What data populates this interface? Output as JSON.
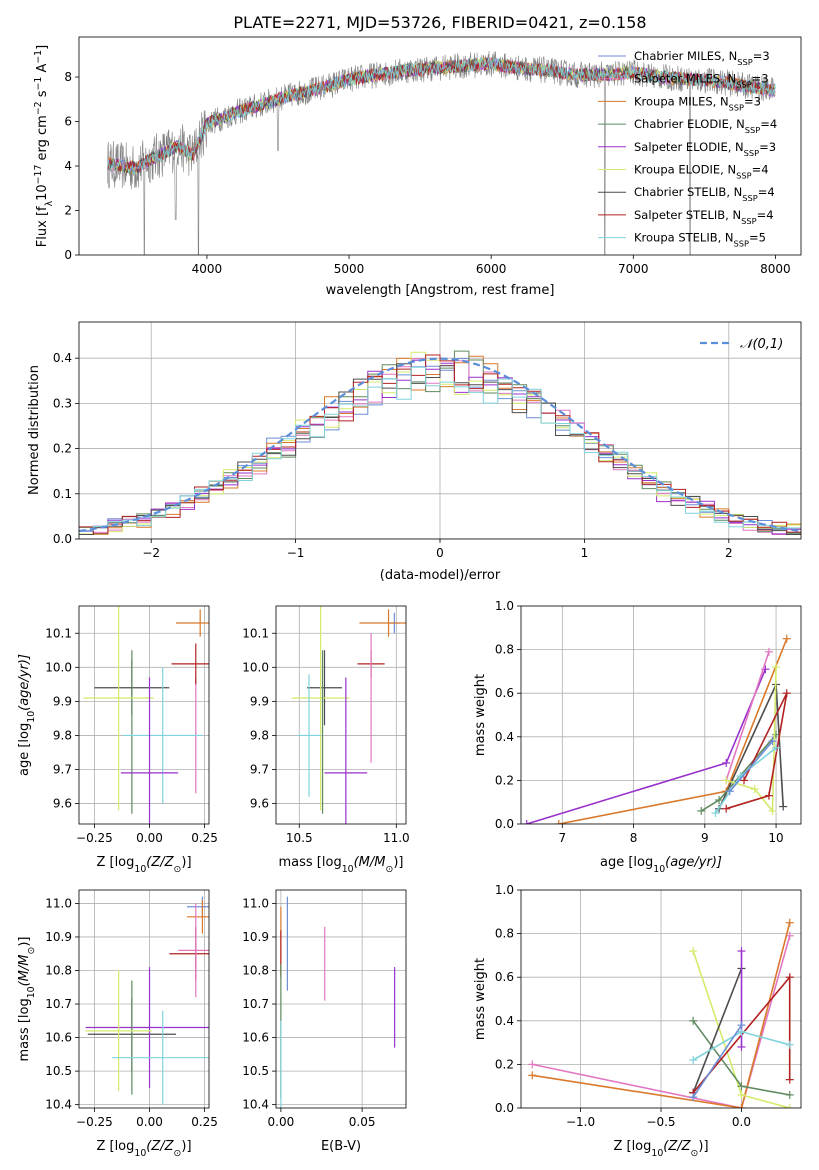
{
  "figure_title": "PLATE=2271, MJD=53726, FIBERID=0421, z=0.158",
  "colors": {
    "Chabrier MILES": "#6b8ed6",
    "Salpeter MILES": "#e377c2",
    "Kroupa MILES": "#d9792b",
    "Chabrier ELODIE": "#5f8a5f",
    "Salpeter ELODIE": "#9932cc",
    "Kroupa ELODIE": "#d4ea6b",
    "Chabrier STELIB": "#4d4d4d",
    "Salpeter STELIB": "#b22222",
    "Kroupa STELIB": "#7fd3dc",
    "gaussian": "#5b8fd9"
  },
  "chart_data": [
    {
      "id": "spectrum",
      "type": "line",
      "title": "PLATE=2271, MJD=53726, FIBERID=0421, z=0.158",
      "xlabel": "wavelength [Angstrom, rest frame]",
      "ylabel_main": "Flux [f",
      "ylabel_sub": "λ",
      "ylabel_rest": "10",
      "ylabel_sup1": "−17",
      "ylabel_rest2": " erg cm",
      "ylabel_sup2": "−2",
      "ylabel_rest3": " s",
      "ylabel_sup3": "−1",
      "ylabel_rest4": " A",
      "ylabel_sup4": "−1",
      "ylabel_end": "]",
      "xlim": [
        3100,
        8180
      ],
      "ylim": [
        0,
        9.8
      ],
      "xticks": [
        4000,
        5000,
        6000,
        7000,
        8000
      ],
      "yticks": [
        0,
        2,
        4,
        6,
        8
      ],
      "grid": false,
      "legend_position": "right",
      "legend": [
        {
          "label": "Chabrier MILES, N",
          "sub": "SSP",
          "val": "=3"
        },
        {
          "label": "Salpeter MILES, N",
          "sub": "SSP",
          "val": "=3"
        },
        {
          "label": "Kroupa MILES, N",
          "sub": "SSP",
          "val": "=3"
        },
        {
          "label": "Chabrier ELODIE, N",
          "sub": "SSP",
          "val": "=4"
        },
        {
          "label": "Salpeter ELODIE, N",
          "sub": "SSP",
          "val": "=3"
        },
        {
          "label": "Kroupa ELODIE, N",
          "sub": "SSP",
          "val": "=4"
        },
        {
          "label": "Chabrier STELIB, N",
          "sub": "SSP",
          "val": "=4"
        },
        {
          "label": "Salpeter STELIB, N",
          "sub": "SSP",
          "val": "=4"
        },
        {
          "label": "Kroupa STELIB, N",
          "sub": "SSP",
          "val": "=5"
        }
      ],
      "model_keys": [
        "Chabrier MILES",
        "Salpeter MILES",
        "Kroupa MILES",
        "Chabrier ELODIE",
        "Salpeter ELODIE",
        "Kroupa ELODIE",
        "Chabrier STELIB",
        "Salpeter STELIB",
        "Kroupa STELIB"
      ],
      "continuum": {
        "x": [
          3300,
          3400,
          3500,
          3600,
          3700,
          3800,
          3900,
          4000,
          4200,
          4400,
          4600,
          4800,
          5000,
          5200,
          5400,
          5600,
          5800,
          6000,
          6200,
          6400,
          6600,
          6800,
          7000,
          7200,
          7400,
          7600,
          7800,
          8000
        ],
        "y": [
          4.1,
          4.0,
          3.9,
          4.3,
          4.6,
          4.9,
          4.5,
          5.9,
          6.4,
          6.8,
          7.2,
          7.5,
          7.9,
          8.1,
          8.3,
          8.4,
          8.5,
          8.6,
          8.4,
          8.3,
          8.1,
          8.1,
          8.2,
          8.0,
          7.9,
          7.8,
          7.6,
          7.4
        ]
      },
      "dips": [
        {
          "x": 3560,
          "y": 0.0
        },
        {
          "x": 3780,
          "y": 1.6
        },
        {
          "x": 3940,
          "y": 0.0
        },
        {
          "x": 4500,
          "y": 4.7
        },
        {
          "x": 6800,
          "y": 0.0
        },
        {
          "x": 7400,
          "y": 0.0
        }
      ]
    },
    {
      "id": "residuals",
      "type": "histogram",
      "xlabel": "(data-model)/error",
      "ylabel": "Normed distribution",
      "xlim": [
        -2.5,
        2.5
      ],
      "ylim": [
        0,
        0.48
      ],
      "xticks": [
        -2,
        -1,
        0,
        1,
        2
      ],
      "xticklabels": [
        "−2",
        "−1",
        "0",
        "1",
        "2"
      ],
      "yticks": [
        0,
        0.1,
        0.2,
        0.3,
        0.4
      ],
      "yticklabels": [
        "0.0",
        "0.1",
        "0.2",
        "0.3",
        "0.4"
      ],
      "grid": true,
      "legend_position": "top-right",
      "legend_label": "𝒩(0,1)",
      "bin_width": 0.1,
      "bin_start": -2.5
    },
    {
      "id": "age-vs-Z",
      "type": "scatter",
      "xlabel": "Z [log",
      "xlabel_sub": "10",
      "xlabel_rest": "(Z/Z",
      "xlabel_sub2": "⊙",
      "xlabel_end": ")]",
      "ylabel": "age  [log",
      "ylabel_sub": "10",
      "ylabel_rest": "(age/yr)]",
      "xlim": [
        -0.32,
        0.27
      ],
      "ylim": [
        9.54,
        10.18
      ],
      "xticks": [
        -0.25,
        0.0,
        0.25
      ],
      "xticklabels": [
        "−0.25",
        "0.00",
        "0.25"
      ],
      "yticks": [
        9.6,
        9.7,
        9.8,
        9.9,
        10.0,
        10.1
      ],
      "yticklabels": [
        "9.6",
        "9.7",
        "9.8",
        "9.9",
        "10.0",
        "10.1"
      ],
      "grid": true,
      "points": [
        {
          "model": "Chabrier MILES",
          "x": 0.24,
          "xerr": 0.0,
          "y": 10.13,
          "yerr": 0.0
        },
        {
          "model": "Kroupa MILES",
          "x": 0.23,
          "xerr": 0.11,
          "y": 10.13,
          "yerr": 0.04
        },
        {
          "model": "Salpeter MILES",
          "x": 0.21,
          "xerr": 0.0,
          "y": 9.8,
          "yerr": 0.17
        },
        {
          "model": "Salpeter STELIB",
          "x": 0.21,
          "xerr": 0.11,
          "y": 10.01,
          "yerr": 0.06
        },
        {
          "model": "Chabrier STELIB",
          "x": -0.08,
          "xerr": 0.17,
          "y": 9.94,
          "yerr": 0.08
        },
        {
          "model": "Chabrier ELODIE",
          "x": -0.08,
          "xerr": 0.0,
          "y": 9.81,
          "yerr": 0.24
        },
        {
          "model": "Kroupa ELODIE",
          "x": -0.14,
          "xerr": 0.16,
          "y": 9.91,
          "yerr": 0.33
        },
        {
          "model": "Kroupa STELIB",
          "x": 0.06,
          "xerr": 0.18,
          "y": 9.8,
          "yerr": 0.2
        },
        {
          "model": "Salpeter ELODIE",
          "x": -0.0,
          "xerr": 0.13,
          "y": 9.69,
          "yerr": 0.28
        }
      ]
    },
    {
      "id": "age-vs-mass",
      "type": "scatter",
      "xlabel": "mass [log",
      "xlabel_sub": "10",
      "xlabel_rest": "(M/M",
      "xlabel_sub2": "⊙",
      "xlabel_end": ")]",
      "xlim": [
        10.38,
        11.05
      ],
      "ylim": [
        9.54,
        10.18
      ],
      "xticks": [
        10.5,
        11.0
      ],
      "xticklabels": [
        "10.5",
        "11.0"
      ],
      "yticks": [
        9.6,
        9.7,
        9.8,
        9.9,
        10.0,
        10.1
      ],
      "yticklabels": [
        "9.6",
        "9.7",
        "9.8",
        "9.9",
        "10.0",
        "10.1"
      ],
      "grid": true,
      "points": [
        {
          "model": "Chabrier MILES",
          "x": 10.99,
          "xerr": 0.03,
          "y": 10.13,
          "yerr": 0.03
        },
        {
          "model": "Kroupa MILES",
          "x": 10.96,
          "xerr": 0.15,
          "y": 10.13,
          "yerr": 0.04
        },
        {
          "model": "Salpeter STELIB",
          "x": 10.87,
          "xerr": 0.07,
          "y": 10.01,
          "yerr": 0.04
        },
        {
          "model": "Salpeter MILES",
          "x": 10.87,
          "xerr": 0.0,
          "y": 9.91,
          "yerr": 0.19
        },
        {
          "model": "Chabrier STELIB",
          "x": 10.63,
          "xerr": 0.09,
          "y": 9.94,
          "yerr": 0.11
        },
        {
          "model": "Kroupa ELODIE",
          "x": 10.61,
          "xerr": 0.15,
          "y": 9.91,
          "yerr": 0.33
        },
        {
          "model": "Chabrier ELODIE",
          "x": 10.62,
          "xerr": 0.0,
          "y": 9.81,
          "yerr": 0.24
        },
        {
          "model": "Kroupa STELIB",
          "x": 10.55,
          "xerr": 0.06,
          "y": 9.8,
          "yerr": 0.18
        },
        {
          "model": "Salpeter ELODIE",
          "x": 10.74,
          "xerr": 0.11,
          "y": 9.69,
          "yerr": 0.28
        }
      ]
    },
    {
      "id": "weight-vs-age",
      "type": "line",
      "xlabel": "age  [log",
      "xlabel_sub": "10",
      "xlabel_rest": "(age/yr)]",
      "ylabel": "mass weight",
      "xlim": [
        6.42,
        10.35
      ],
      "ylim": [
        0,
        1.0
      ],
      "xticks": [
        7,
        8,
        9,
        10
      ],
      "yticks": [
        0,
        0.2,
        0.4,
        0.6,
        0.8,
        1.0
      ],
      "yticklabels": [
        "0.0",
        "0.2",
        "0.4",
        "0.6",
        "0.8",
        "1.0"
      ],
      "grid": true,
      "series": [
        {
          "model": "Salpeter ELODIE",
          "x": [
            6.5,
            9.3,
            9.85
          ],
          "y": [
            0.0,
            0.28,
            0.71
          ]
        },
        {
          "model": "Kroupa MILES",
          "x": [
            6.95,
            9.3,
            10.15
          ],
          "y": [
            0.0,
            0.15,
            0.85
          ]
        },
        {
          "model": "Salpeter MILES",
          "x": [
            9.3,
            9.9
          ],
          "y": [
            0.2,
            0.79
          ]
        },
        {
          "model": "Chabrier STELIB",
          "x": [
            9.2,
            10.0,
            10.1
          ],
          "y": [
            0.07,
            0.64,
            0.08
          ]
        },
        {
          "model": "Chabrier ELODIE",
          "x": [
            8.95,
            9.2,
            10.0
          ],
          "y": [
            0.06,
            0.11,
            0.41
          ]
        },
        {
          "model": "Kroupa ELODIE",
          "x": [
            9.3,
            9.7,
            9.95,
            10.0
          ],
          "y": [
            0.2,
            0.16,
            0.06,
            0.72
          ]
        },
        {
          "model": "Salpeter STELIB",
          "x": [
            9.3,
            9.9,
            10.15,
            9.55
          ],
          "y": [
            0.07,
            0.13,
            0.6,
            0.2
          ]
        },
        {
          "model": "Kroupa STELIB",
          "x": [
            9.15,
            9.5,
            10.0
          ],
          "y": [
            0.05,
            0.22,
            0.35
          ]
        },
        {
          "model": "Chabrier MILES",
          "x": [
            9.35,
            9.95
          ],
          "y": [
            0.15,
            0.38
          ]
        }
      ]
    },
    {
      "id": "mass-vs-Z",
      "type": "scatter",
      "xlabel": "Z [log",
      "xlabel_sub": "10",
      "xlabel_rest": "(Z/Z",
      "xlabel_sub2": "⊙",
      "xlabel_end": ")]",
      "ylabel": "mass [log",
      "ylabel_sub": "10",
      "ylabel_rest": "(M/M",
      "ylabel_sub2": "⊙",
      "ylabel_end": ")]",
      "xlim": [
        -0.32,
        0.27
      ],
      "ylim": [
        10.39,
        11.04
      ],
      "xticks": [
        -0.25,
        0.0,
        0.25
      ],
      "xticklabels": [
        "−0.25",
        "0.00",
        "0.25"
      ],
      "yticks": [
        10.4,
        10.5,
        10.6,
        10.7,
        10.8,
        10.9,
        11.0
      ],
      "yticklabels": [
        "10.4",
        "10.5",
        "10.6",
        "10.7",
        "10.8",
        "10.9",
        "11.0"
      ],
      "grid": true,
      "points": [
        {
          "model": "Chabrier MILES",
          "x": 0.24,
          "xerr": 0.07,
          "y": 10.99,
          "yerr": 0.03
        },
        {
          "model": "Kroupa MILES",
          "x": 0.24,
          "xerr": 0.07,
          "y": 10.96,
          "yerr": 0.05
        },
        {
          "model": "Salpeter STELIB",
          "x": 0.21,
          "xerr": 0.12,
          "y": 10.85,
          "yerr": 0.08
        },
        {
          "model": "Salpeter MILES",
          "x": 0.21,
          "xerr": 0.08,
          "y": 10.86,
          "yerr": 0.14
        },
        {
          "model": "Chabrier STELIB",
          "x": -0.08,
          "xerr": 0.2,
          "y": 10.61,
          "yerr": 0.11
        },
        {
          "model": "Salpeter ELODIE",
          "x": -0.0,
          "xerr": 0.29,
          "y": 10.63,
          "yerr": 0.18
        },
        {
          "model": "Chabrier ELODIE",
          "x": -0.08,
          "xerr": 0.0,
          "y": 10.6,
          "yerr": 0.17
        },
        {
          "model": "Kroupa ELODIE",
          "x": -0.14,
          "xerr": 0.15,
          "y": 10.62,
          "yerr": 0.18
        },
        {
          "model": "Kroupa STELIB",
          "x": 0.06,
          "xerr": 0.23,
          "y": 10.54,
          "yerr": 0.14
        }
      ]
    },
    {
      "id": "mass-vs-EBV",
      "type": "scatter",
      "xlabel": "E(B-V)",
      "xlim": [
        -0.003,
        0.077
      ],
      "ylim": [
        10.39,
        11.04
      ],
      "xticks": [
        0.0,
        0.05
      ],
      "xticklabels": [
        "0.00",
        "0.05"
      ],
      "yticks": [
        10.4,
        10.5,
        10.6,
        10.7,
        10.8,
        10.9,
        11.0
      ],
      "yticklabels": [
        "10.4",
        "10.5",
        "10.6",
        "10.7",
        "10.8",
        "10.9",
        "11.0"
      ],
      "grid": true,
      "points": [
        {
          "model": "Chabrier MILES",
          "x": 0.004,
          "xerr": 0.0,
          "y": 10.88,
          "yerr": 0.14
        },
        {
          "model": "Kroupa MILES",
          "x": 0.0,
          "xerr": 0.0,
          "y": 10.89,
          "yerr": 0.1
        },
        {
          "model": "Salpeter STELIB",
          "x": 0.0,
          "xerr": 0.0,
          "y": 10.85,
          "yerr": 0.07
        },
        {
          "model": "Salpeter MILES",
          "x": 0.027,
          "xerr": 0.0,
          "y": 10.82,
          "yerr": 0.11
        },
        {
          "model": "Salpeter ELODIE",
          "x": 0.07,
          "xerr": 0.0,
          "y": 10.69,
          "yerr": 0.12
        },
        {
          "model": "Chabrier ELODIE",
          "x": 0.0,
          "xerr": 0.0,
          "y": 10.62,
          "yerr": 0.2
        },
        {
          "model": "Kroupa STELIB",
          "x": 0.0,
          "xerr": 0.0,
          "y": 10.52,
          "yerr": 0.13
        }
      ]
    },
    {
      "id": "weight-vs-Z",
      "type": "line",
      "xlabel": "Z [log",
      "xlabel_sub": "10",
      "xlabel_rest": "(Z/Z",
      "xlabel_sub2": "⊙",
      "xlabel_end": ")]",
      "ylabel": "mass weight",
      "xlim": [
        -1.37,
        0.37
      ],
      "ylim": [
        0,
        1.0
      ],
      "xticks": [
        -1.0,
        -0.5,
        0.0
      ],
      "xticklabels": [
        "−1.0",
        "−0.5",
        "0.0"
      ],
      "yticks": [
        0,
        0.2,
        0.4,
        0.6,
        0.8,
        1.0
      ],
      "yticklabels": [
        "0.0",
        "0.2",
        "0.4",
        "0.6",
        "0.8",
        "1.0"
      ],
      "grid": true,
      "series": [
        {
          "model": "Salpeter MILES",
          "x": [
            -1.3,
            0.0,
            0.3
          ],
          "y": [
            0.2,
            0.0,
            0.79
          ]
        },
        {
          "model": "Kroupa MILES",
          "x": [
            -1.3,
            0.0,
            0.3
          ],
          "y": [
            0.15,
            0.0,
            0.85
          ]
        },
        {
          "model": "Kroupa ELODIE",
          "x": [
            -0.3,
            0.0,
            0.3
          ],
          "y": [
            0.72,
            0.06,
            0.0
          ]
        },
        {
          "model": "Chabrier ELODIE",
          "x": [
            -0.3,
            0.0,
            0.3
          ],
          "y": [
            0.4,
            0.1,
            0.06
          ]
        },
        {
          "model": "Chabrier STELIB",
          "x": [
            -0.3,
            0.0
          ],
          "y": [
            0.07,
            0.64
          ]
        },
        {
          "model": "Salpeter STELIB",
          "x": [
            -0.3,
            0.3,
            0.3
          ],
          "y": [
            0.07,
            0.6,
            0.13
          ]
        },
        {
          "model": "Salpeter ELODIE",
          "x": [
            0.0,
            0.0
          ],
          "y": [
            0.28,
            0.72
          ]
        },
        {
          "model": "Kroupa STELIB",
          "x": [
            -0.3,
            0.0,
            0.3
          ],
          "y": [
            0.22,
            0.35,
            0.29
          ]
        },
        {
          "model": "Chabrier MILES",
          "x": [
            -0.3,
            0.0
          ],
          "y": [
            0.05,
            0.38
          ]
        }
      ]
    }
  ]
}
